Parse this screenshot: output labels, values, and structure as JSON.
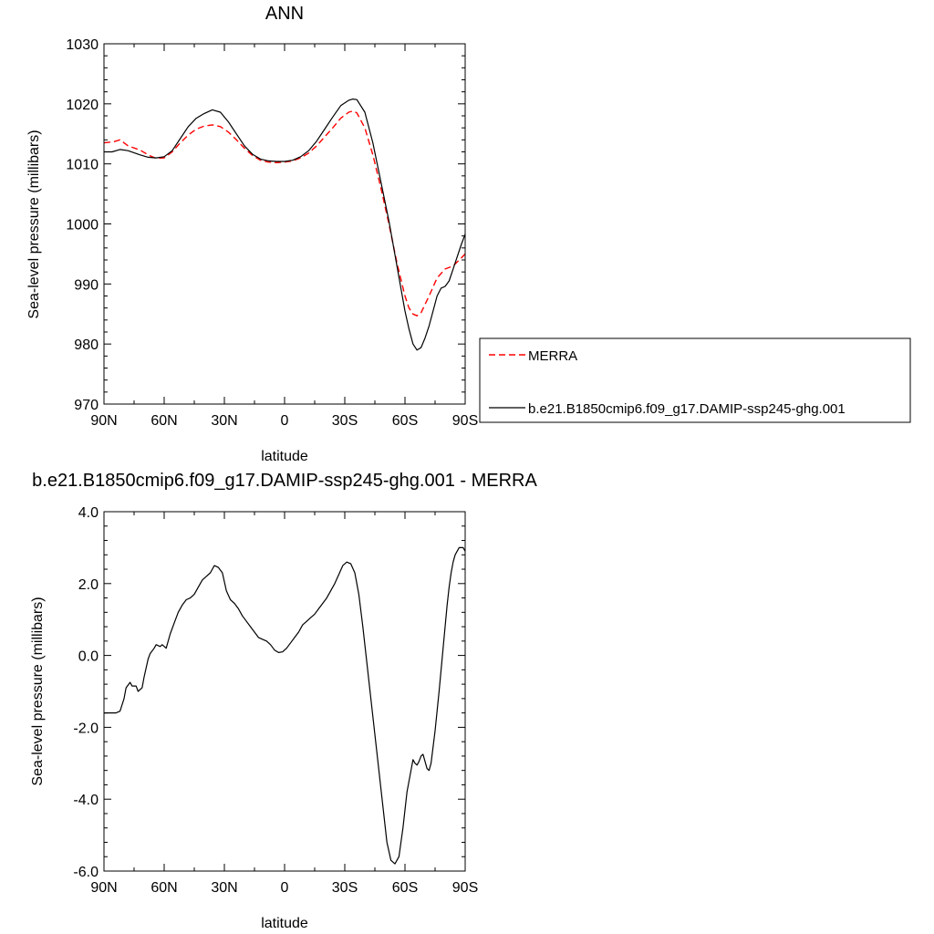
{
  "chart_data": [
    {
      "type": "line",
      "title": "ANN",
      "xlabel": "latitude",
      "ylabel": "Sea-level pressure (millibars)",
      "xlim": [
        90,
        -90
      ],
      "ylim": [
        970,
        1030
      ],
      "x_ticks": [
        90,
        60,
        30,
        0,
        -30,
        -60,
        -90
      ],
      "x_tick_labels": [
        "90N",
        "60N",
        "30N",
        "0",
        "30S",
        "60S",
        "90S"
      ],
      "y_ticks": [
        970,
        980,
        990,
        1000,
        1010,
        1020,
        1030
      ],
      "y_tick_labels": [
        "970",
        "980",
        "990",
        "1000",
        "1010",
        "1020",
        "1030"
      ],
      "grid": false,
      "legend_position": "right",
      "series": [
        {
          "name": "MERRA",
          "color": "#ff0000",
          "dash": "dashed",
          "x": [
            90,
            85,
            82,
            78,
            72,
            68,
            64,
            60,
            56,
            52,
            48,
            44,
            40,
            36,
            32,
            28,
            24,
            20,
            16,
            12,
            8,
            4,
            0,
            -4,
            -8,
            -12,
            -16,
            -20,
            -24,
            -28,
            -32,
            -34,
            -36,
            -40,
            -44,
            -48,
            -52,
            -56,
            -60,
            -62,
            -64,
            -66,
            -68,
            -72,
            -76,
            -80,
            -84,
            -88,
            -90
          ],
          "y": [
            1013.5,
            1013.7,
            1014.0,
            1013.0,
            1012.3,
            1011.5,
            1010.9,
            1011.0,
            1012.0,
            1013.5,
            1014.8,
            1015.8,
            1016.3,
            1016.5,
            1016.2,
            1015.3,
            1014.0,
            1012.6,
            1011.4,
            1010.6,
            1010.3,
            1010.2,
            1010.3,
            1010.5,
            1011.0,
            1011.8,
            1013.0,
            1014.5,
            1016.0,
            1017.6,
            1018.6,
            1018.8,
            1018.5,
            1016.0,
            1011.5,
            1006.0,
            1000.0,
            993.5,
            988.0,
            986.0,
            985.0,
            984.7,
            985.2,
            988.0,
            991.0,
            992.5,
            993.0,
            994.3,
            995.0
          ]
        },
        {
          "name": "b.e21.B1850cmip6.f09_g17.DAMIP-ssp245-ghg.001",
          "color": "#000000",
          "dash": "solid",
          "x": [
            90,
            86,
            82,
            78,
            72,
            68,
            64,
            60,
            56,
            52,
            48,
            44,
            40,
            36,
            32,
            28,
            24,
            20,
            16,
            12,
            8,
            4,
            0,
            -4,
            -8,
            -12,
            -16,
            -20,
            -24,
            -28,
            -32,
            -34,
            -36,
            -40,
            -44,
            -48,
            -52,
            -56,
            -60,
            -62,
            -64,
            -66,
            -68,
            -70,
            -72,
            -74,
            -76,
            -78,
            -80,
            -82,
            -84,
            -86,
            -88,
            -90
          ],
          "y": [
            1012.0,
            1012.0,
            1012.4,
            1012.2,
            1011.5,
            1011.1,
            1011.0,
            1011.2,
            1012.2,
            1014.2,
            1016.2,
            1017.6,
            1018.4,
            1019.0,
            1018.6,
            1017.0,
            1015.0,
            1013.0,
            1011.6,
            1010.8,
            1010.5,
            1010.4,
            1010.4,
            1010.6,
            1011.2,
            1012.2,
            1013.8,
            1015.8,
            1017.8,
            1019.7,
            1020.6,
            1020.8,
            1020.7,
            1018.6,
            1013.5,
            1007.0,
            1000.5,
            993.0,
            985.5,
            982.5,
            980.0,
            979.0,
            979.4,
            981.0,
            983.0,
            985.5,
            988.0,
            989.3,
            989.6,
            990.5,
            992.5,
            994.5,
            996.5,
            998.3
          ]
        }
      ]
    },
    {
      "type": "line",
      "title": "b.e21.B1850cmip6.f09_g17.DAMIP-ssp245-ghg.001 - MERRA",
      "xlabel": "latitude",
      "ylabel": "Sea-level pressure (millibars)",
      "xlim": [
        90,
        -90
      ],
      "ylim": [
        -6,
        4
      ],
      "x_ticks": [
        90,
        60,
        30,
        0,
        -30,
        -60,
        -90
      ],
      "x_tick_labels": [
        "90N",
        "60N",
        "30N",
        "0",
        "30S",
        "60S",
        "90S"
      ],
      "y_ticks": [
        -6,
        -4,
        -2,
        0,
        2,
        4
      ],
      "y_tick_labels": [
        "-6.0",
        "-4.0",
        "-2.0",
        "0.0",
        "2.0",
        "4.0"
      ],
      "grid": false,
      "series": [
        {
          "color": "#000000",
          "dash": "solid",
          "x": [
            90,
            86,
            84,
            82,
            80,
            79,
            77,
            76,
            74,
            73,
            71,
            70,
            68,
            67,
            65,
            64,
            62,
            61,
            59,
            57,
            55,
            53,
            51,
            49,
            47,
            45,
            43,
            41,
            39,
            37,
            35,
            33,
            31,
            29,
            27,
            25,
            23,
            21,
            19,
            17,
            15,
            13,
            11,
            9,
            7,
            5,
            3,
            1,
            -1,
            -3,
            -5,
            -7,
            -9,
            -11,
            -13,
            -15,
            -17,
            -19,
            -21,
            -23,
            -25,
            -27,
            -29,
            -31,
            -33,
            -35,
            -37,
            -39,
            -41,
            -43,
            -45,
            -47,
            -49,
            -51,
            -53,
            -55,
            -57,
            -59,
            -61,
            -63,
            -64,
            -65,
            -66,
            -67,
            -68,
            -69,
            -70,
            -71,
            -72,
            -73,
            -75,
            -77,
            -78,
            -79,
            -80,
            -81,
            -82,
            -83,
            -84,
            -85,
            -86,
            -87,
            -88,
            -89,
            -90
          ],
          "y": [
            -1.6,
            -1.6,
            -1.6,
            -1.55,
            -1.2,
            -0.9,
            -0.75,
            -0.85,
            -0.85,
            -1.0,
            -0.9,
            -0.6,
            -0.1,
            0.05,
            0.2,
            0.3,
            0.25,
            0.3,
            0.2,
            0.6,
            0.9,
            1.2,
            1.4,
            1.55,
            1.6,
            1.7,
            1.9,
            2.1,
            2.2,
            2.3,
            2.5,
            2.45,
            2.3,
            1.8,
            1.55,
            1.45,
            1.3,
            1.1,
            0.95,
            0.8,
            0.65,
            0.5,
            0.45,
            0.4,
            0.3,
            0.15,
            0.08,
            0.1,
            0.2,
            0.35,
            0.5,
            0.65,
            0.85,
            0.95,
            1.05,
            1.15,
            1.3,
            1.45,
            1.6,
            1.8,
            2.0,
            2.25,
            2.5,
            2.6,
            2.55,
            2.3,
            1.7,
            0.8,
            -0.2,
            -1.2,
            -2.2,
            -3.2,
            -4.2,
            -5.2,
            -5.7,
            -5.8,
            -5.6,
            -4.8,
            -3.8,
            -3.2,
            -2.9,
            -3.0,
            -3.05,
            -2.95,
            -2.8,
            -2.75,
            -2.95,
            -3.15,
            -3.2,
            -3.0,
            -2.1,
            -1.0,
            -0.4,
            0.2,
            0.8,
            1.4,
            1.9,
            2.3,
            2.6,
            2.8,
            2.9,
            3.0,
            3.0,
            3.0,
            2.9
          ]
        }
      ]
    }
  ]
}
